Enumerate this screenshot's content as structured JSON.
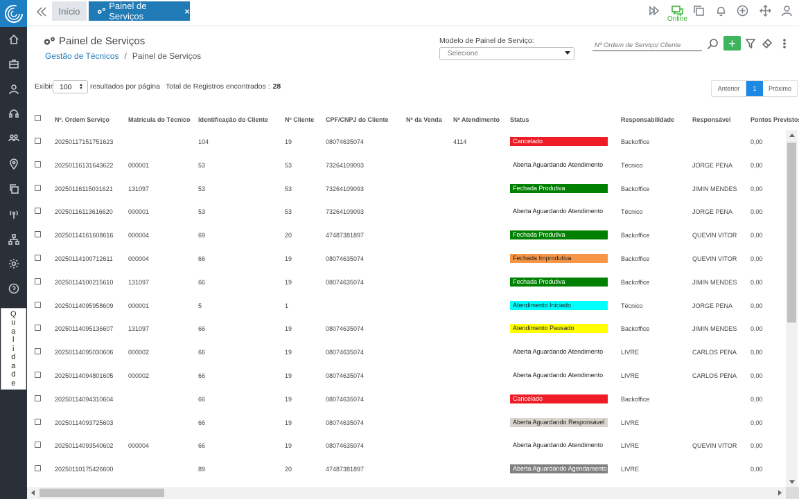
{
  "topbar": {
    "tab_inicio": "Início",
    "tab_painel": "Painel de Serviços",
    "online_label": "Online"
  },
  "sidebar": {
    "qualidade_label": "Qualidade"
  },
  "header": {
    "title": "Painel de Serviços",
    "breadcrumb_parent": "Gestão de Técnicos",
    "breadcrumb_sep": "/",
    "breadcrumb_current": "Painel de Serviços",
    "modelo_label": "Modelo de Painel de Serviço:",
    "modelo_value": "Selecione",
    "search_placeholder": "Nº Ordem de Serviço/ Cliente",
    "add_label": "+"
  },
  "controls": {
    "exibir": "Exibir",
    "per_page": "100",
    "per_page_suffix": "resultados por página",
    "total_label": "Total de Registros encontrados :",
    "total_value": "28",
    "prev": "Anterior",
    "page": "1",
    "next": "Próximo"
  },
  "table": {
    "headers": [
      "Nº. Ordem Serviço",
      "Matrícula do Técnico",
      "Identificação do Cliente",
      "Nº Cliente",
      "CPF/CNPJ do Cliente",
      "Nº da Venda",
      "Nº Atendimento",
      "Status",
      "Responsabilidade",
      "Responsável",
      "Pontos Previstos"
    ],
    "rows": [
      {
        "os": "20250117151751623",
        "mat": "",
        "ident": "104",
        "ncli": "19",
        "cpf": "08074635074",
        "venda": "",
        "atend": "4114",
        "status": "Cancelado",
        "status_color": "#ee1c25",
        "status_text": "#ffffff",
        "resp": "Backoffice",
        "responsavel": "",
        "pontos": "0,00"
      },
      {
        "os": "20250116131643622",
        "mat": "000001",
        "ident": "53",
        "ncli": "53",
        "cpf": "73264109093",
        "venda": "",
        "atend": "",
        "status": "Aberta Aguardando Atendimento",
        "status_color": "#ffffff",
        "status_text": "#222222",
        "resp": "Técnico",
        "responsavel": "JORGE PENA",
        "pontos": "0,00"
      },
      {
        "os": "20250116115031621",
        "mat": "131097",
        "ident": "53",
        "ncli": "53",
        "cpf": "73264109093",
        "venda": "",
        "atend": "",
        "status": "Fechada Produtiva",
        "status_color": "#008000",
        "status_text": "#ffffff",
        "resp": "Backoffice",
        "responsavel": "JIMIN MENDES",
        "pontos": "0,00"
      },
      {
        "os": "20250116113616620",
        "mat": "000001",
        "ident": "53",
        "ncli": "53",
        "cpf": "73264109093",
        "venda": "",
        "atend": "",
        "status": "Aberta Aguardando Atendimento",
        "status_color": "#ffffff",
        "status_text": "#222222",
        "resp": "Técnico",
        "responsavel": "JORGE PENA",
        "pontos": "0,00"
      },
      {
        "os": "20250114161608616",
        "mat": "000004",
        "ident": "69",
        "ncli": "20",
        "cpf": "47487381897",
        "venda": "",
        "atend": "",
        "status": "Fechada Produtiva",
        "status_color": "#008000",
        "status_text": "#ffffff",
        "resp": "Backoffice",
        "responsavel": "QUEVIN VITOR",
        "pontos": "0,00"
      },
      {
        "os": "20250114100712611",
        "mat": "000004",
        "ident": "66",
        "ncli": "19",
        "cpf": "08074635074",
        "venda": "",
        "atend": "",
        "status": "Fechada Improdutiva",
        "status_color": "#f79646",
        "status_text": "#222222",
        "resp": "Backoffice",
        "responsavel": "QUEVIN VITOR",
        "pontos": "0,00"
      },
      {
        "os": "20250114100215610",
        "mat": "131097",
        "ident": "66",
        "ncli": "19",
        "cpf": "08074635074",
        "venda": "",
        "atend": "",
        "status": "Fechada Produtiva",
        "status_color": "#008000",
        "status_text": "#ffffff",
        "resp": "Backoffice",
        "responsavel": "JIMIN MENDES",
        "pontos": "0,00"
      },
      {
        "os": "20250114095958609",
        "mat": "000001",
        "ident": "5",
        "ncli": "1",
        "cpf": "",
        "venda": "",
        "atend": "",
        "status": "Atendimento Iniciado",
        "status_color": "#00ffff",
        "status_text": "#222222",
        "resp": "Técnico",
        "responsavel": "JORGE PENA",
        "pontos": "0,00"
      },
      {
        "os": "20250114095136607",
        "mat": "131097",
        "ident": "66",
        "ncli": "19",
        "cpf": "08074635074",
        "venda": "",
        "atend": "",
        "status": "Atendimento Pausado",
        "status_color": "#ffff00",
        "status_text": "#222222",
        "resp": "Backoffice",
        "responsavel": "JIMIN MENDES",
        "pontos": "0,00"
      },
      {
        "os": "20250114095030606",
        "mat": "000002",
        "ident": "66",
        "ncli": "19",
        "cpf": "08074635074",
        "venda": "",
        "atend": "",
        "status": "Aberta Aguardando Atendimento",
        "status_color": "#ffffff",
        "status_text": "#222222",
        "resp": "LIVRE",
        "responsavel": "CARLOS PENA",
        "pontos": "0,00"
      },
      {
        "os": "20250114094801605",
        "mat": "000002",
        "ident": "66",
        "ncli": "19",
        "cpf": "08074635074",
        "venda": "",
        "atend": "",
        "status": "Aberta Aguardando Atendimento",
        "status_color": "#ffffff",
        "status_text": "#222222",
        "resp": "LIVRE",
        "responsavel": "CARLOS PENA",
        "pontos": "0,00"
      },
      {
        "os": "20250114094310604",
        "mat": "",
        "ident": "66",
        "ncli": "19",
        "cpf": "08074635074",
        "venda": "",
        "atend": "",
        "status": "Cancelado",
        "status_color": "#ee1c25",
        "status_text": "#ffffff",
        "resp": "Backoffice",
        "responsavel": "",
        "pontos": "0,00"
      },
      {
        "os": "20250114093725603",
        "mat": "",
        "ident": "66",
        "ncli": "19",
        "cpf": "08074635074",
        "venda": "",
        "atend": "",
        "status": "Aberta Aguardando Responsável",
        "status_color": "#d9d4cc",
        "status_text": "#222222",
        "resp": "LIVRE",
        "responsavel": "",
        "pontos": "0,00"
      },
      {
        "os": "20250114093540602",
        "mat": "000004",
        "ident": "66",
        "ncli": "19",
        "cpf": "08074635074",
        "venda": "",
        "atend": "",
        "status": "Aberta Aguardando Atendimento",
        "status_color": "#ffffff",
        "status_text": "#222222",
        "resp": "LIVRE",
        "responsavel": "QUEVIN VITOR",
        "pontos": "0,00"
      },
      {
        "os": "20250110175426600",
        "mat": "",
        "ident": "89",
        "ncli": "20",
        "cpf": "47487381897",
        "venda": "",
        "atend": "",
        "status": "Aberta Aguardando Agendamento",
        "status_color": "#808080",
        "status_text": "#ffffff",
        "resp": "LIVRE",
        "responsavel": "",
        "pontos": "0,00"
      }
    ]
  }
}
